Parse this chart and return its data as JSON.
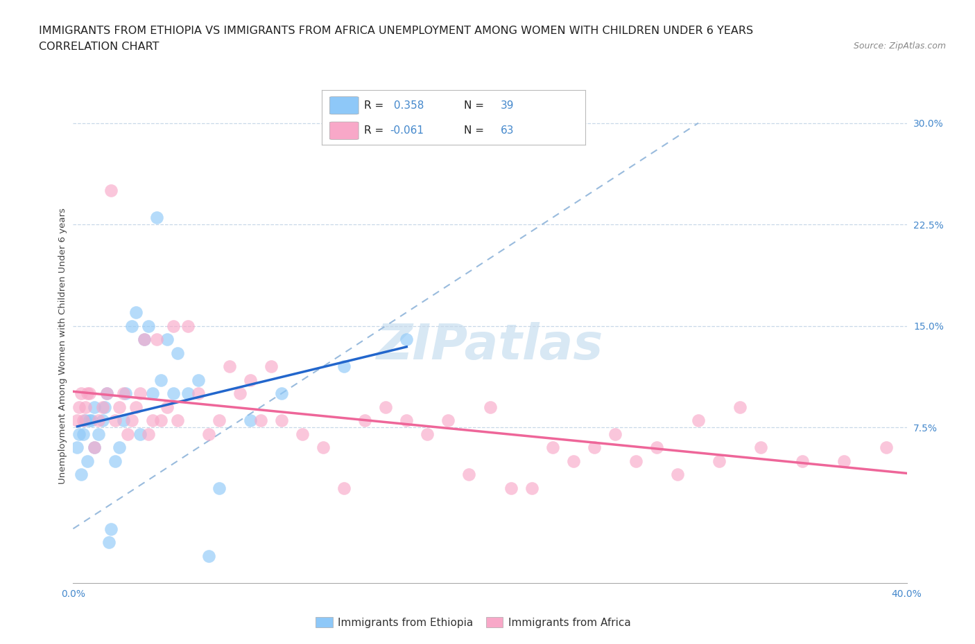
{
  "title_line1": "IMMIGRANTS FROM ETHIOPIA VS IMMIGRANTS FROM AFRICA UNEMPLOYMENT AMONG WOMEN WITH CHILDREN UNDER 6 YEARS",
  "title_line2": "CORRELATION CHART",
  "source": "Source: ZipAtlas.com",
  "ylabel": "Unemployment Among Women with Children Under 6 years",
  "xlim": [
    0.0,
    0.4
  ],
  "ylim": [
    -0.04,
    0.31
  ],
  "ytick_right_vals": [
    0.075,
    0.15,
    0.225,
    0.3
  ],
  "ytick_right_labels": [
    "7.5%",
    "15.0%",
    "22.5%",
    "30.0%"
  ],
  "grid_color": "#c8d8e8",
  "background_color": "#ffffff",
  "ethiopia_color": "#8ec8f8",
  "africa_color": "#f8a8c8",
  "regression_ethiopia_color": "#2266cc",
  "regression_africa_color": "#ee6699",
  "regression_dashed_color": "#99bbdd",
  "R_ethiopia": 0.358,
  "N_ethiopia": 39,
  "R_africa": -0.061,
  "N_africa": 63,
  "legend_label_ethiopia": "Immigrants from Ethiopia",
  "legend_label_africa": "Immigrants from Africa",
  "title_fontsize": 11.5,
  "axis_label_fontsize": 9.5,
  "tick_fontsize": 10,
  "tick_color": "#4488cc",
  "watermark_text": "ZIPatlas",
  "watermark_color": "#c8dff0",
  "ethiopia_x": [
    0.002,
    0.003,
    0.004,
    0.005,
    0.006,
    0.007,
    0.008,
    0.009,
    0.01,
    0.01,
    0.012,
    0.014,
    0.015,
    0.016,
    0.017,
    0.018,
    0.02,
    0.022,
    0.024,
    0.025,
    0.028,
    0.03,
    0.032,
    0.034,
    0.036,
    0.038,
    0.04,
    0.042,
    0.045,
    0.048,
    0.05,
    0.055,
    0.06,
    0.065,
    0.07,
    0.085,
    0.1,
    0.13,
    0.16
  ],
  "ethiopia_y": [
    0.06,
    0.07,
    0.04,
    0.07,
    0.08,
    0.05,
    0.08,
    0.08,
    0.09,
    0.06,
    0.07,
    0.08,
    0.09,
    0.1,
    -0.01,
    0.0,
    0.05,
    0.06,
    0.08,
    0.1,
    0.15,
    0.16,
    0.07,
    0.14,
    0.15,
    0.1,
    0.23,
    0.11,
    0.14,
    0.1,
    0.13,
    0.1,
    0.11,
    -0.02,
    0.03,
    0.08,
    0.1,
    0.12,
    0.14
  ],
  "africa_x": [
    0.002,
    0.003,
    0.004,
    0.005,
    0.006,
    0.007,
    0.008,
    0.01,
    0.012,
    0.014,
    0.016,
    0.018,
    0.02,
    0.022,
    0.024,
    0.026,
    0.028,
    0.03,
    0.032,
    0.034,
    0.036,
    0.038,
    0.04,
    0.042,
    0.045,
    0.048,
    0.05,
    0.055,
    0.06,
    0.065,
    0.07,
    0.075,
    0.08,
    0.085,
    0.09,
    0.095,
    0.1,
    0.11,
    0.12,
    0.13,
    0.14,
    0.15,
    0.16,
    0.17,
    0.18,
    0.19,
    0.2,
    0.21,
    0.22,
    0.23,
    0.24,
    0.25,
    0.26,
    0.27,
    0.28,
    0.29,
    0.3,
    0.31,
    0.32,
    0.33,
    0.35,
    0.37,
    0.39
  ],
  "africa_y": [
    0.08,
    0.09,
    0.1,
    0.08,
    0.09,
    0.1,
    0.1,
    0.06,
    0.08,
    0.09,
    0.1,
    0.25,
    0.08,
    0.09,
    0.1,
    0.07,
    0.08,
    0.09,
    0.1,
    0.14,
    0.07,
    0.08,
    0.14,
    0.08,
    0.09,
    0.15,
    0.08,
    0.15,
    0.1,
    0.07,
    0.08,
    0.12,
    0.1,
    0.11,
    0.08,
    0.12,
    0.08,
    0.07,
    0.06,
    0.03,
    0.08,
    0.09,
    0.08,
    0.07,
    0.08,
    0.04,
    0.09,
    0.03,
    0.03,
    0.06,
    0.05,
    0.06,
    0.07,
    0.05,
    0.06,
    0.04,
    0.08,
    0.05,
    0.09,
    0.06,
    0.05,
    0.05,
    0.06
  ]
}
